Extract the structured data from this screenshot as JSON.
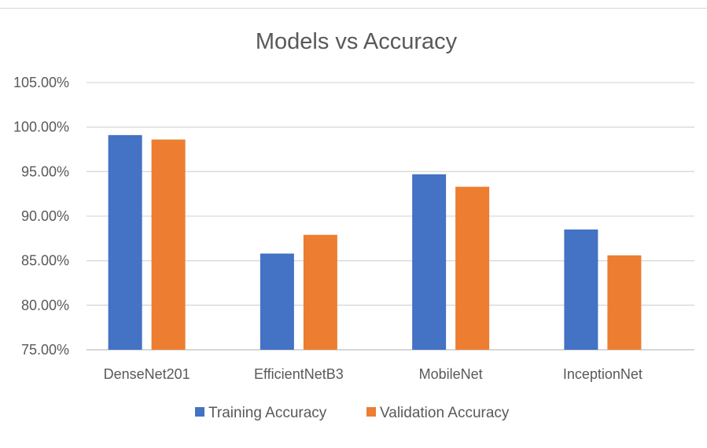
{
  "chart_data": {
    "type": "bar",
    "title": "Models vs Accuracy",
    "xlabel": "",
    "ylabel": "",
    "categories": [
      "DenseNet201",
      "EfficientNetB3",
      "MobileNet",
      "InceptionNet"
    ],
    "series": [
      {
        "name": "Training Accuracy",
        "color": "#4472c4",
        "values": [
          99.1,
          85.8,
          94.7,
          88.5
        ]
      },
      {
        "name": "Validation Accuracy",
        "color": "#ed7d31",
        "values": [
          98.6,
          87.9,
          93.3,
          85.6
        ]
      }
    ],
    "ylim": [
      75,
      105
    ],
    "yticks": [
      75,
      80,
      85,
      90,
      95,
      100,
      105
    ],
    "ytick_labels": [
      "75.00%",
      "80.00%",
      "85.00%",
      "90.00%",
      "95.00%",
      "100.00%",
      "105.00%"
    ],
    "grid": true,
    "legend_position": "bottom"
  }
}
